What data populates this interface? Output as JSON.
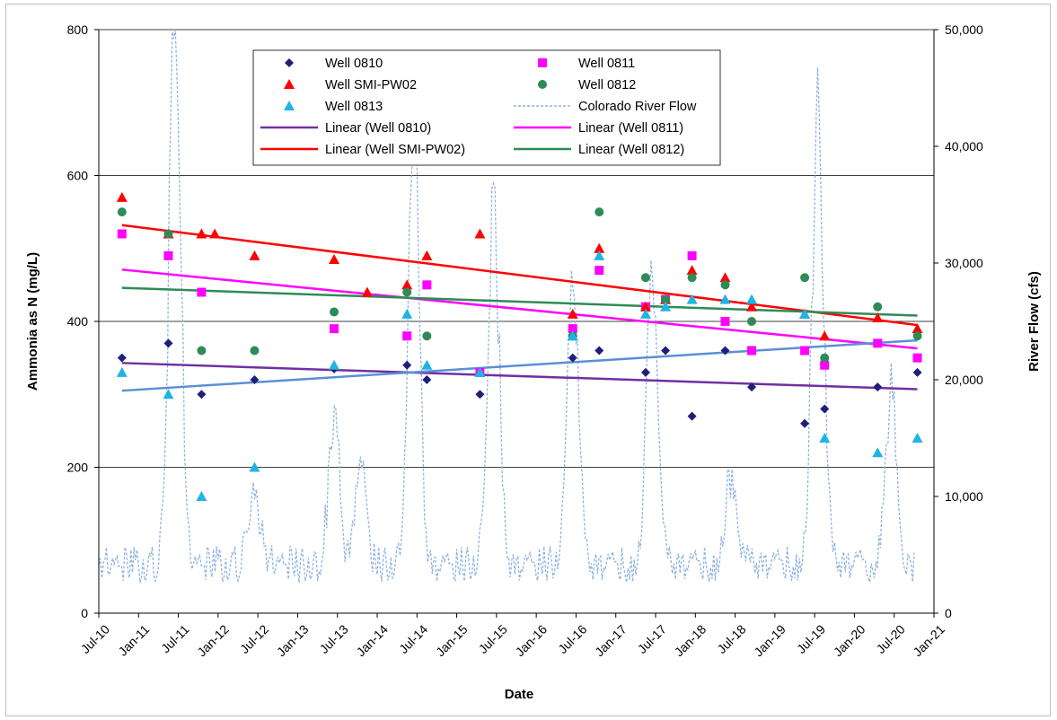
{
  "chart_data": {
    "type": "scatter",
    "xlabel": "Date",
    "ylabel": "Ammonia as N  (mg/L)",
    "y2label": "River Flow (cfs)",
    "x_ticks": [
      "Jul-10",
      "Jan-11",
      "Jul-11",
      "Jan-12",
      "Jul-12",
      "Jan-13",
      "Jul-13",
      "Jan-14",
      "Jul-14",
      "Jan-15",
      "Jul-15",
      "Jan-16",
      "Jul-16",
      "Jan-17",
      "Jul-17",
      "Jan-18",
      "Jul-18",
      "Jan-19",
      "Jul-19",
      "Jan-20",
      "Jul-20",
      "Jan-21"
    ],
    "y_ticks": [
      "0",
      "200",
      "400",
      "600",
      "800"
    ],
    "y2_ticks": [
      "0",
      "10,000",
      "20,000",
      "30,000",
      "40,000",
      "50,000"
    ],
    "ylim": [
      0,
      800
    ],
    "y2lim": [
      0,
      50000
    ],
    "grid": "horizontal",
    "legend_placement": "top-center",
    "colors": {
      "w0810": "#1f1f7a",
      "w0811": "#ff00ff",
      "wsmi": "#ff0000",
      "w0812": "#2e8b57",
      "w0813": "#1eb4e6",
      "flow": "#8fb3e0",
      "trend_0810": "#7030a0",
      "trend_0811": "#ff00ff",
      "trend_smi": "#ff0000",
      "trend_0812": "#2e8b57",
      "trend_0813": "#5b8fd6"
    },
    "legend": [
      {
        "key": "w0810",
        "label": "Well 0810",
        "kind": "diamond"
      },
      {
        "key": "w0811",
        "label": "Well 0811",
        "kind": "square"
      },
      {
        "key": "wsmi",
        "label": "Well SMI-PW02",
        "kind": "triangle"
      },
      {
        "key": "w0812",
        "label": "Well 0812",
        "kind": "circle"
      },
      {
        "key": "w0813",
        "label": "Well 0813",
        "kind": "triangle"
      },
      {
        "key": "flow",
        "label": "Colorado River Flow",
        "kind": "dash"
      },
      {
        "key": "trend_0810",
        "label": "Linear (Well 0810)",
        "kind": "line"
      },
      {
        "key": "trend_0811",
        "label": "Linear (Well 0811)",
        "kind": "line"
      },
      {
        "key": "trend_smi",
        "label": "Linear (Well SMI-PW02)",
        "kind": "line"
      },
      {
        "key": "trend_0812",
        "label": "Linear (Well 0812)",
        "kind": "line"
      }
    ],
    "series": [
      {
        "key": "w0810",
        "name": "Well 0810",
        "marker": "diamond",
        "x": [
          "2010-10",
          "2011-05",
          "2011-10",
          "2012-06",
          "2013-06",
          "2014-05",
          "2014-08",
          "2015-04",
          "2016-06",
          "2016-10",
          "2017-05",
          "2017-08",
          "2017-12",
          "2018-05",
          "2018-09",
          "2019-05",
          "2019-08",
          "2020-04",
          "2020-10"
        ],
        "y": [
          350,
          370,
          300,
          320,
          335,
          340,
          320,
          300,
          350,
          360,
          330,
          360,
          270,
          360,
          310,
          260,
          280,
          310,
          330
        ]
      },
      {
        "key": "w0811",
        "name": "Well 0811",
        "marker": "square",
        "x": [
          "2010-10",
          "2011-05",
          "2011-10",
          "2013-06",
          "2014-05",
          "2014-08",
          "2015-04",
          "2016-06",
          "2016-10",
          "2017-05",
          "2017-08",
          "2017-12",
          "2018-05",
          "2018-09",
          "2019-05",
          "2019-08",
          "2020-04",
          "2020-10"
        ],
        "y": [
          520,
          490,
          440,
          390,
          380,
          450,
          330,
          390,
          470,
          420,
          430,
          490,
          400,
          360,
          360,
          340,
          370,
          350
        ]
      },
      {
        "key": "wsmi",
        "name": "Well SMI-PW02",
        "marker": "triangle",
        "x": [
          "2010-10",
          "2011-05",
          "2011-10",
          "2011-12",
          "2012-06",
          "2013-06",
          "2013-11",
          "2014-05",
          "2014-08",
          "2015-04",
          "2016-06",
          "2016-10",
          "2017-05",
          "2017-08",
          "2017-12",
          "2018-05",
          "2018-09",
          "2019-05",
          "2019-08",
          "2020-04",
          "2020-10"
        ],
        "y": [
          570,
          520,
          520,
          520,
          490,
          485,
          440,
          450,
          490,
          520,
          410,
          500,
          420,
          430,
          470,
          460,
          420,
          410,
          380,
          405,
          390
        ]
      },
      {
        "key": "w0812",
        "name": "Well 0812",
        "marker": "circle",
        "x": [
          "2010-10",
          "2011-05",
          "2011-10",
          "2012-06",
          "2013-06",
          "2014-05",
          "2014-08",
          "2016-06",
          "2016-10",
          "2017-05",
          "2017-08",
          "2017-12",
          "2018-05",
          "2018-09",
          "2019-05",
          "2019-08",
          "2020-04",
          "2020-10"
        ],
        "y": [
          550,
          520,
          360,
          360,
          413,
          440,
          380,
          380,
          550,
          460,
          430,
          460,
          450,
          400,
          460,
          350,
          420,
          380
        ]
      },
      {
        "key": "w0813",
        "name": "Well 0813",
        "marker": "triangle",
        "x": [
          "2010-10",
          "2011-05",
          "2011-10",
          "2012-06",
          "2013-06",
          "2014-05",
          "2014-08",
          "2015-04",
          "2016-06",
          "2016-10",
          "2017-05",
          "2017-08",
          "2017-12",
          "2018-05",
          "2018-09",
          "2019-05",
          "2019-08",
          "2020-04",
          "2020-10"
        ],
        "y": [
          330,
          300,
          160,
          200,
          340,
          410,
          340,
          330,
          380,
          490,
          410,
          420,
          430,
          430,
          430,
          410,
          240,
          220,
          240
        ]
      }
    ],
    "trendlines": [
      {
        "key": "trend_0810",
        "x": [
          "2010-10",
          "2020-10"
        ],
        "y": [
          343,
          307
        ]
      },
      {
        "key": "trend_0811",
        "x": [
          "2010-10",
          "2020-10"
        ],
        "y": [
          471,
          363
        ]
      },
      {
        "key": "trend_smi",
        "x": [
          "2010-10",
          "2020-10"
        ],
        "y": [
          532,
          395
        ]
      },
      {
        "key": "trend_0812",
        "x": [
          "2010-10",
          "2020-10"
        ],
        "y": [
          446,
          408
        ]
      },
      {
        "key": "trend_0813",
        "x": [
          "2010-10",
          "2020-10"
        ],
        "y": [
          305,
          374
        ]
      }
    ],
    "flow_series": {
      "key": "flow",
      "name": "Colorado River Flow",
      "baseline_cfs": 3500,
      "peaks": [
        {
          "x": "2011-06",
          "cfs": 48500
        },
        {
          "x": "2012-06",
          "cfs": 6000
        },
        {
          "x": "2013-06",
          "cfs": 12200
        },
        {
          "x": "2013-10",
          "cfs": 9300
        },
        {
          "x": "2014-06",
          "cfs": 37500
        },
        {
          "x": "2015-06",
          "cfs": 31000
        },
        {
          "x": "2016-06",
          "cfs": 24500
        },
        {
          "x": "2017-06",
          "cfs": 26000
        },
        {
          "x": "2018-06",
          "cfs": 8200
        },
        {
          "x": "2019-07",
          "cfs": 39300
        },
        {
          "x": "2020-06",
          "cfs": 15000
        }
      ]
    }
  }
}
